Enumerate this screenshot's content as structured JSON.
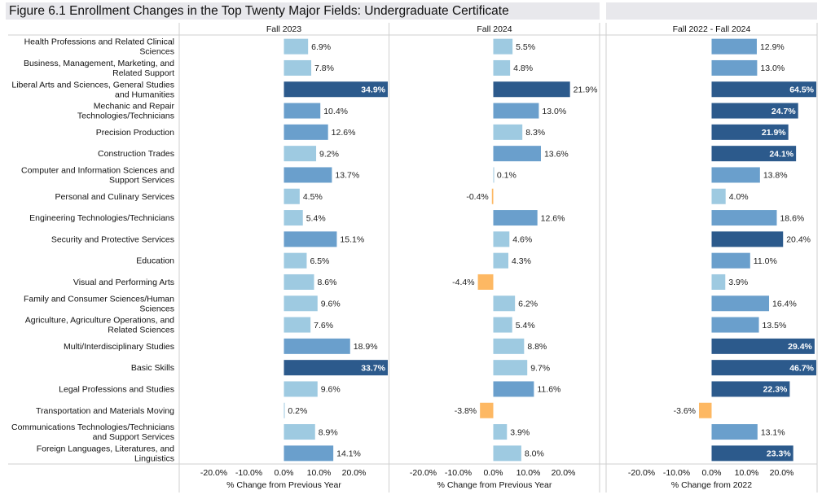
{
  "title": "Figure 6.1 Enrollment Changes in the Top Twenty Major Fields: Undergraduate Certificate",
  "chart_data": {
    "type": "bar",
    "orientation": "horizontal",
    "categories": [
      [
        "Health Professions and Related Clinical",
        "Sciences"
      ],
      [
        "Business, Management, Marketing, and",
        "Related Support"
      ],
      [
        "Liberal Arts and Sciences, General Studies",
        "and Humanities"
      ],
      [
        "Mechanic and Repair",
        "Technologies/Technicians"
      ],
      [
        "Precision Production"
      ],
      [
        "Construction Trades"
      ],
      [
        "Computer and Information Sciences and",
        "Support Services"
      ],
      [
        "Personal and Culinary Services"
      ],
      [
        "Engineering Technologies/Technicians"
      ],
      [
        "Security and Protective Services"
      ],
      [
        "Education"
      ],
      [
        "Visual and Performing Arts"
      ],
      [
        "Family and Consumer Sciences/Human",
        "Sciences"
      ],
      [
        "Agriculture, Agriculture Operations, and",
        "Related Sciences"
      ],
      [
        "Multi/Interdisciplinary Studies"
      ],
      [
        "Basic Skills"
      ],
      [
        "Legal Professions and Studies"
      ],
      [
        "Transportation and Materials Moving"
      ],
      [
        "Communications Technologies/Technicians",
        "and Support Services"
      ],
      [
        "Foreign Languages, Literatures, and",
        "Linguistics"
      ]
    ],
    "panels": [
      {
        "title": "Fall 2023",
        "xlabel": "% Change from Previous Year",
        "values": [
          6.9,
          7.8,
          34.9,
          10.4,
          12.6,
          9.2,
          13.7,
          4.5,
          5.4,
          15.1,
          6.5,
          8.6,
          9.6,
          7.6,
          18.9,
          33.7,
          9.6,
          0.2,
          8.9,
          14.1
        ],
        "labels": [
          "6.9%",
          "7.8%",
          "34.9%",
          "10.4%",
          "12.6%",
          "9.2%",
          "13.7%",
          "4.5%",
          "5.4%",
          "15.1%",
          "6.5%",
          "8.6%",
          "9.6%",
          "7.6%",
          "18.9%",
          "33.7%",
          "9.6%",
          "0.2%",
          "8.9%",
          "14.1%"
        ]
      },
      {
        "title": "Fall 2024",
        "xlabel": "% Change from Previous Year",
        "values": [
          5.5,
          4.8,
          21.9,
          13.0,
          8.3,
          13.6,
          0.1,
          -0.4,
          12.6,
          4.6,
          4.3,
          -4.4,
          6.2,
          5.4,
          8.8,
          9.7,
          11.6,
          -3.8,
          3.9,
          8.0
        ],
        "labels": [
          "5.5%",
          "4.8%",
          "21.9%",
          "13.0%",
          "8.3%",
          "13.6%",
          "0.1%",
          "-0.4%",
          "12.6%",
          "4.6%",
          "4.3%",
          "-4.4%",
          "6.2%",
          "5.4%",
          "8.8%",
          "9.7%",
          "11.6%",
          "-3.8%",
          "3.9%",
          "8.0%"
        ]
      },
      {
        "title": "Fall 2022 - Fall 2024",
        "xlabel": "% Change from 2022",
        "values": [
          12.9,
          13.0,
          64.5,
          24.7,
          21.9,
          24.1,
          13.8,
          4.0,
          18.6,
          20.4,
          11.0,
          3.9,
          16.4,
          13.5,
          29.4,
          46.7,
          22.3,
          -3.6,
          13.1,
          23.3
        ],
        "labels": [
          "12.9%",
          "13.0%",
          "64.5%",
          "24.7%",
          "21.9%",
          "24.1%",
          "13.8%",
          "4.0%",
          "18.6%",
          "20.4%",
          "11.0%",
          "3.9%",
          "16.4%",
          "13.5%",
          "29.4%",
          "46.7%",
          "22.3%",
          "-3.6%",
          "13.1%",
          "23.3%"
        ]
      }
    ],
    "xticks": [
      -20,
      -10,
      0,
      10,
      20
    ],
    "xtick_labels": [
      "-20.0%",
      "-10.0%",
      "0.0%",
      "10.0%",
      "20.0%"
    ],
    "colors": {
      "negative": "#fdb863",
      "light": "#9ecae1",
      "mid": "#6a9fcc",
      "dark": "#2c5a8c",
      "label_dark": "#222222",
      "label_light": "#ffffff"
    }
  }
}
